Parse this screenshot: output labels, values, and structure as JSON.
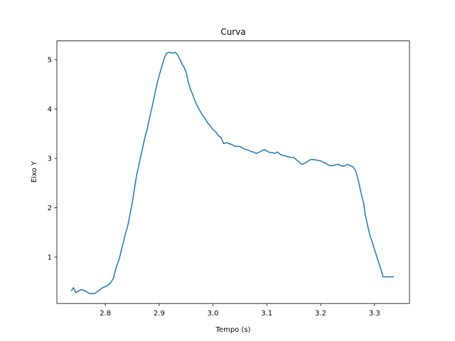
{
  "chart_data": {
    "type": "line",
    "title": "Curva",
    "xlabel": "Tempo (s)",
    "ylabel": "Eixo Y",
    "xlim": [
      2.71,
      3.365
    ],
    "ylim": [
      0.06,
      5.38
    ],
    "xticks": [
      2.8,
      2.9,
      3.0,
      3.1,
      3.2,
      3.3
    ],
    "xtick_labels": [
      "2.8",
      "2.9",
      "3.0",
      "3.1",
      "3.2",
      "3.3"
    ],
    "yticks": [
      1,
      2,
      3,
      4,
      5
    ],
    "ytick_labels": [
      "1",
      "2",
      "3",
      "4",
      "5"
    ],
    "grid": false,
    "legend": false,
    "series": [
      {
        "color": "#1f77b4",
        "x": [
          2.737,
          2.741,
          2.745,
          2.75,
          2.755,
          2.76,
          2.765,
          2.77,
          2.775,
          2.78,
          2.785,
          2.79,
          2.795,
          2.8,
          2.805,
          2.81,
          2.815,
          2.818,
          2.822,
          2.826,
          2.83,
          2.834,
          2.838,
          2.842,
          2.846,
          2.85,
          2.854,
          2.858,
          2.862,
          2.866,
          2.87,
          2.874,
          2.878,
          2.882,
          2.886,
          2.89,
          2.894,
          2.898,
          2.902,
          2.906,
          2.91,
          2.914,
          2.918,
          2.922,
          2.926,
          2.93,
          2.934,
          2.938,
          2.942,
          2.946,
          2.95,
          2.954,
          2.958,
          2.962,
          2.966,
          2.97,
          2.974,
          2.978,
          2.982,
          2.986,
          2.99,
          2.995,
          3.0,
          3.005,
          3.01,
          3.015,
          3.02,
          3.025,
          3.03,
          3.035,
          3.04,
          3.045,
          3.05,
          3.055,
          3.06,
          3.065,
          3.07,
          3.075,
          3.08,
          3.085,
          3.09,
          3.095,
          3.1,
          3.105,
          3.11,
          3.115,
          3.12,
          3.125,
          3.13,
          3.135,
          3.14,
          3.145,
          3.15,
          3.155,
          3.16,
          3.165,
          3.17,
          3.175,
          3.18,
          3.185,
          3.19,
          3.195,
          3.2,
          3.205,
          3.21,
          3.215,
          3.22,
          3.225,
          3.23,
          3.235,
          3.24,
          3.245,
          3.25,
          3.255,
          3.26,
          3.265,
          3.27,
          3.275,
          3.28,
          3.283,
          3.286,
          3.289,
          3.292,
          3.296,
          3.3,
          3.304,
          3.308,
          3.312,
          3.316,
          3.32,
          3.324,
          3.328,
          3.332,
          3.335
        ],
        "y": [
          0.32,
          0.38,
          0.28,
          0.31,
          0.34,
          0.33,
          0.3,
          0.26,
          0.26,
          0.26,
          0.3,
          0.34,
          0.38,
          0.4,
          0.43,
          0.48,
          0.57,
          0.7,
          0.85,
          0.97,
          1.15,
          1.32,
          1.5,
          1.65,
          1.88,
          2.1,
          2.38,
          2.65,
          2.85,
          3.05,
          3.25,
          3.45,
          3.6,
          3.82,
          4.0,
          4.2,
          4.42,
          4.6,
          4.75,
          4.9,
          5.05,
          5.13,
          5.15,
          5.14,
          5.13,
          5.15,
          5.1,
          5.02,
          4.92,
          4.85,
          4.75,
          4.55,
          4.4,
          4.3,
          4.18,
          4.08,
          4.0,
          3.92,
          3.85,
          3.8,
          3.72,
          3.66,
          3.58,
          3.54,
          3.46,
          3.42,
          3.3,
          3.32,
          3.3,
          3.28,
          3.25,
          3.24,
          3.24,
          3.21,
          3.18,
          3.17,
          3.14,
          3.13,
          3.1,
          3.12,
          3.15,
          3.18,
          3.15,
          3.12,
          3.12,
          3.1,
          3.13,
          3.08,
          3.06,
          3.05,
          3.03,
          3.02,
          3.02,
          2.97,
          2.93,
          2.88,
          2.9,
          2.93,
          2.97,
          2.98,
          2.97,
          2.96,
          2.95,
          2.92,
          2.9,
          2.86,
          2.85,
          2.86,
          2.88,
          2.87,
          2.84,
          2.85,
          2.88,
          2.85,
          2.83,
          2.75,
          2.55,
          2.3,
          2.08,
          1.85,
          1.7,
          1.55,
          1.42,
          1.3,
          1.15,
          1.02,
          0.88,
          0.75,
          0.6,
          0.6,
          0.6,
          0.6,
          0.6,
          0.6
        ]
      }
    ]
  }
}
